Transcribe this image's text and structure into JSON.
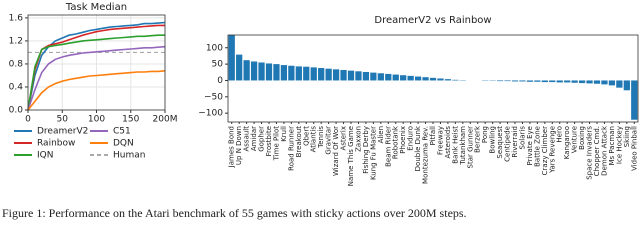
{
  "chart_data": [
    {
      "type": "line",
      "title": "Task Median",
      "x": [
        0,
        10,
        20,
        30,
        40,
        50,
        60,
        70,
        80,
        90,
        100,
        110,
        120,
        130,
        140,
        150,
        160,
        170,
        180,
        190,
        200
      ],
      "xlim": [
        0,
        200
      ],
      "xticks": [
        0,
        50,
        100,
        150,
        {
          "value": 200,
          "label": "200M"
        }
      ],
      "ylim": [
        0,
        1.65
      ],
      "yticks": [
        {
          "value": 0,
          "label": "0.0"
        },
        {
          "value": 0.4,
          "label": "0.4"
        },
        {
          "value": 0.8,
          "label": "0.8"
        },
        {
          "value": 1.2,
          "label": "1.2"
        },
        {
          "value": 1.6,
          "label": "1.6"
        }
      ],
      "grid": true,
      "series": [
        {
          "name": "DreamerV2",
          "color": "#1f77b4",
          "values": [
            0,
            0.6,
            0.95,
            1.1,
            1.2,
            1.25,
            1.3,
            1.32,
            1.35,
            1.38,
            1.4,
            1.42,
            1.44,
            1.45,
            1.46,
            1.47,
            1.48,
            1.5,
            1.5,
            1.51,
            1.52
          ]
        },
        {
          "name": "Rainbow",
          "color": "#d62728",
          "values": [
            0,
            0.7,
            1.05,
            1.12,
            1.15,
            1.18,
            1.22,
            1.26,
            1.3,
            1.33,
            1.36,
            1.38,
            1.4,
            1.41,
            1.42,
            1.43,
            1.44,
            1.45,
            1.46,
            1.47,
            1.47
          ]
        },
        {
          "name": "IQN",
          "color": "#2ca02c",
          "values": [
            0,
            0.75,
            1.05,
            1.1,
            1.12,
            1.14,
            1.16,
            1.18,
            1.2,
            1.21,
            1.22,
            1.23,
            1.24,
            1.25,
            1.26,
            1.27,
            1.28,
            1.28,
            1.29,
            1.3,
            1.3
          ]
        },
        {
          "name": "C51",
          "color": "#9467bd",
          "values": [
            0,
            0.35,
            0.65,
            0.8,
            0.88,
            0.92,
            0.95,
            0.97,
            0.99,
            1.0,
            1.01,
            1.02,
            1.03,
            1.04,
            1.05,
            1.06,
            1.07,
            1.08,
            1.08,
            1.09,
            1.1
          ]
        },
        {
          "name": "DQN",
          "color": "#ff7f0e",
          "values": [
            0,
            0.15,
            0.3,
            0.4,
            0.46,
            0.5,
            0.53,
            0.55,
            0.57,
            0.59,
            0.6,
            0.61,
            0.62,
            0.63,
            0.64,
            0.65,
            0.66,
            0.66,
            0.67,
            0.67,
            0.68
          ]
        }
      ],
      "reference": {
        "name": "Human",
        "color": "#aaaaaa",
        "value": 1
      }
    },
    {
      "type": "bar",
      "title": "DreamerV2 vs Rainbow",
      "color": "#1f77b4",
      "categories": [
        "James Bond",
        "Up N Down",
        "Assault",
        "Amidar",
        "Gopher",
        "Frostbite",
        "Time Pilot",
        "Krull",
        "Road Runner",
        "Breakout",
        "Qbert",
        "Atlantis",
        "Tennis",
        "Gravitar",
        "Wizard Of Wor",
        "Asterix",
        "Name This Game",
        "Zaxxon",
        "Fishing Derby",
        "Kung Fu Master",
        "Alien",
        "Beam Rider",
        "Robotank",
        "Phoenix",
        "Enduro",
        "Double Dunk",
        "Montezuma Rev.",
        "Pitfall",
        "Freeway",
        "Asteroids",
        "Bank Heist",
        "Tutankham",
        "Star Gunner",
        "Berzerk",
        "Pong",
        "Bowling",
        "Seaquest",
        "Centipede",
        "Riverraid",
        "Solaris",
        "Private Eye",
        "Battle Zone",
        "Crazy Climber",
        "Yars Revenge",
        "Hero",
        "Kangaroo",
        "Venture",
        "Boxing",
        "Space Invaders",
        "Chopper Cmd.",
        "Demon Attack",
        "Ms Pacman",
        "Ice Hockey",
        "Skiing",
        "Video Pinball"
      ],
      "values": [
        139,
        79,
        62,
        58,
        55,
        52,
        50,
        47,
        45,
        43,
        42,
        40,
        38,
        36,
        34,
        32,
        30,
        28,
        26,
        24,
        22,
        20,
        18,
        16,
        14,
        12,
        10,
        8,
        6,
        4,
        2,
        1,
        0,
        0,
        -1,
        -1,
        -2,
        -2,
        -3,
        -3,
        -4,
        -4,
        -5,
        -5,
        -6,
        -6,
        -7,
        -8,
        -9,
        -10,
        -12,
        -15,
        -22,
        -30,
        -120
      ],
      "ylim": [
        -127,
        139
      ],
      "yticks": [
        {
          "value": -100,
          "label": "−100"
        },
        {
          "value": -50,
          "label": "−50"
        },
        0,
        50,
        100
      ],
      "grid": false
    }
  ],
  "caption": "Figure 1: Performance on the Atari benchmark of 55 games with sticky actions over 200M steps."
}
